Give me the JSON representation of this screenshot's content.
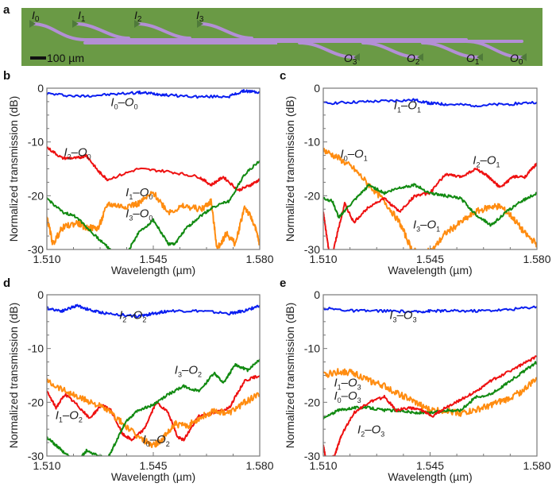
{
  "panel_letters": {
    "a": "a",
    "b": "b",
    "c": "c",
    "d": "d",
    "e": "e"
  },
  "photo": {
    "scale_bar_label": "100 µm",
    "inputs": [
      {
        "base": "I",
        "sub": "0"
      },
      {
        "base": "I",
        "sub": "1"
      },
      {
        "base": "I",
        "sub": "2"
      },
      {
        "base": "I",
        "sub": "3"
      }
    ],
    "outputs": [
      {
        "base": "O",
        "sub": "3"
      },
      {
        "base": "O",
        "sub": "2"
      },
      {
        "base": "O",
        "sub": "1"
      },
      {
        "base": "O",
        "sub": "0"
      }
    ],
    "colors": {
      "background": "#6a9a45",
      "waveguide": "#b38fd6",
      "coupler": "#4f7a3a"
    }
  },
  "series_colors": {
    "blue": "#0a1ef0",
    "red": "#ee1010",
    "orange": "#ff8c10",
    "green": "#118a11"
  },
  "chart_data": [
    {
      "panel": "b",
      "type": "line",
      "xlabel": "Wavelength (µm)",
      "ylabel": "Normalized transmission (dB)",
      "xlim": [
        1.51,
        1.58
      ],
      "ylim": [
        -30,
        0
      ],
      "xticks": [
        "1.510",
        "1.545",
        "1.580"
      ],
      "yticks": [
        "0",
        "-10",
        "-20",
        "-30"
      ],
      "series": [
        {
          "name": "I0–O0",
          "label": {
            "a": "I",
            "as": "0",
            "b": "O",
            "bs": "0"
          },
          "color": "blue",
          "x": [
            1.51,
            1.52,
            1.53,
            1.54,
            1.545,
            1.55,
            1.56,
            1.57,
            1.575,
            1.58
          ],
          "y": [
            -1.0,
            -1.5,
            -1.2,
            -0.8,
            -1.0,
            -1.3,
            -1.6,
            -1.5,
            -0.5,
            -0.8
          ]
        },
        {
          "name": "I2–O0",
          "label": {
            "a": "I",
            "as": "2",
            "b": "O",
            "bs": "0"
          },
          "color": "red",
          "x": [
            1.51,
            1.515,
            1.52,
            1.523,
            1.527,
            1.53,
            1.54,
            1.55,
            1.56,
            1.564,
            1.568,
            1.573,
            1.577,
            1.58
          ],
          "y": [
            -11.0,
            -13.0,
            -13.0,
            -12.5,
            -15.5,
            -17.0,
            -15.0,
            -15.5,
            -16.5,
            -18.0,
            -16.5,
            -19.0,
            -18.0,
            -17.0
          ]
        },
        {
          "name": "I1–O0",
          "label": {
            "a": "I",
            "as": "1",
            "b": "O",
            "bs": "0"
          },
          "color": "orange",
          "x": [
            1.51,
            1.512,
            1.515,
            1.52,
            1.523,
            1.527,
            1.53,
            1.535,
            1.54,
            1.545,
            1.55,
            1.555,
            1.561,
            1.564,
            1.566,
            1.569,
            1.572,
            1.575,
            1.578,
            1.58
          ],
          "y": [
            -24.0,
            -29.0,
            -26.0,
            -25.0,
            -26.0,
            -26.0,
            -21.5,
            -22.0,
            -21.5,
            -19.5,
            -23.0,
            -22.0,
            -22.5,
            -21.0,
            -30.0,
            -27.0,
            -29.0,
            -22.0,
            -25.0,
            -29.0
          ]
        },
        {
          "name": "I3–O0",
          "label": {
            "a": "I",
            "as": "3",
            "b": "O",
            "bs": "0"
          },
          "color": "green",
          "x": [
            1.51,
            1.515,
            1.52,
            1.525,
            1.53,
            1.532,
            1.536,
            1.54,
            1.545,
            1.55,
            1.552,
            1.556,
            1.56,
            1.565,
            1.57,
            1.575,
            1.58
          ],
          "y": [
            -20.5,
            -23.0,
            -24.0,
            -27.0,
            -29.5,
            -31.0,
            -31.0,
            -27.0,
            -24.5,
            -29.0,
            -29.0,
            -26.0,
            -24.0,
            -22.0,
            -21.0,
            -16.0,
            -13.5
          ]
        }
      ]
    },
    {
      "panel": "c",
      "type": "line",
      "xlabel": "Wavelength (µm)",
      "ylabel": "Normalized transmission (dB)",
      "xlim": [
        1.51,
        1.58
      ],
      "ylim": [
        -30,
        0
      ],
      "xticks": [
        "1.510",
        "1.545",
        "1.580"
      ],
      "yticks": [
        "0",
        "-10",
        "-20",
        "-30"
      ],
      "series": [
        {
          "name": "I1–O1",
          "label": {
            "a": "I",
            "as": "1",
            "b": "O",
            "bs": "1"
          },
          "color": "blue",
          "x": [
            1.51,
            1.52,
            1.53,
            1.54,
            1.545,
            1.55,
            1.56,
            1.57,
            1.58
          ],
          "y": [
            -2.8,
            -2.6,
            -2.4,
            -2.2,
            -2.8,
            -3.0,
            -3.2,
            -3.0,
            -2.6
          ]
        },
        {
          "name": "I0–O1",
          "label": {
            "a": "I",
            "as": "0",
            "b": "O",
            "bs": "1"
          },
          "color": "orange",
          "x": [
            1.51,
            1.515,
            1.52,
            1.525,
            1.53,
            1.535,
            1.539,
            1.542,
            1.546,
            1.55,
            1.555,
            1.56,
            1.565,
            1.568,
            1.572,
            1.576,
            1.58
          ],
          "y": [
            -11.5,
            -13.0,
            -15.0,
            -18.0,
            -21.0,
            -25.0,
            -30.0,
            -31.0,
            -30.0,
            -27.0,
            -25.0,
            -23.0,
            -22.0,
            -22.0,
            -24.0,
            -27.0,
            -29.0
          ]
        },
        {
          "name": "I2–O1",
          "label": {
            "a": "I",
            "as": "2",
            "b": "O",
            "bs": "1"
          },
          "color": "red",
          "x": [
            1.51,
            1.511,
            1.512,
            1.513,
            1.515,
            1.517,
            1.52,
            1.525,
            1.53,
            1.535,
            1.54,
            1.545,
            1.55,
            1.555,
            1.56,
            1.563,
            1.565,
            1.568,
            1.572,
            1.576,
            1.58
          ],
          "y": [
            -23.0,
            -27.0,
            -31.0,
            -31.0,
            -26.0,
            -21.5,
            -25.0,
            -22.0,
            -20.5,
            -23.0,
            -20.0,
            -19.5,
            -16.0,
            -16.5,
            -15.0,
            -16.0,
            -17.0,
            -18.5,
            -16.5,
            -16.5,
            -14.0
          ]
        },
        {
          "name": "I3–O1",
          "label": {
            "a": "I",
            "as": "3",
            "b": "O",
            "bs": "1"
          },
          "color": "green",
          "x": [
            1.51,
            1.513,
            1.515,
            1.52,
            1.525,
            1.53,
            1.535,
            1.54,
            1.545,
            1.55,
            1.555,
            1.56,
            1.565,
            1.57,
            1.575,
            1.58
          ],
          "y": [
            -20.5,
            -21.0,
            -24.0,
            -21.0,
            -18.0,
            -19.5,
            -18.5,
            -18.0,
            -19.5,
            -20.0,
            -20.5,
            -23.5,
            -25.5,
            -23.0,
            -21.0,
            -19.5
          ]
        }
      ]
    },
    {
      "panel": "d",
      "type": "line",
      "xlabel": "Wavelength (µm)",
      "ylabel": "Normalized transmission (dB)",
      "xlim": [
        1.51,
        1.58
      ],
      "ylim": [
        -30,
        0
      ],
      "xticks": [
        "1.510",
        "1.545",
        "1.580"
      ],
      "yticks": [
        "0",
        "-10",
        "-20",
        "-30"
      ],
      "series": [
        {
          "name": "I2–O2",
          "label": {
            "a": "I",
            "as": "2",
            "b": "O",
            "bs": "2"
          },
          "color": "blue",
          "x": [
            1.51,
            1.515,
            1.52,
            1.525,
            1.53,
            1.54,
            1.545,
            1.55,
            1.56,
            1.57,
            1.575,
            1.58
          ],
          "y": [
            -2.5,
            -3.0,
            -2.0,
            -3.0,
            -3.5,
            -4.0,
            -3.5,
            -3.0,
            -3.0,
            -3.5,
            -3.0,
            -2.0
          ]
        },
        {
          "name": "I1–O2",
          "label": {
            "a": "I",
            "as": "1",
            "b": "O",
            "bs": "2"
          },
          "color": "red",
          "x": [
            1.51,
            1.513,
            1.516,
            1.52,
            1.524,
            1.528,
            1.531,
            1.535,
            1.538,
            1.542,
            1.546,
            1.55,
            1.553,
            1.555,
            1.56,
            1.565,
            1.57,
            1.575,
            1.58
          ],
          "y": [
            -18.0,
            -21.0,
            -18.5,
            -20.5,
            -23.0,
            -20.5,
            -21.5,
            -26.0,
            -27.0,
            -25.0,
            -20.0,
            -22.0,
            -26.5,
            -27.0,
            -22.5,
            -22.0,
            -21.0,
            -16.0,
            -15.0
          ]
        },
        {
          "name": "I0–O2",
          "label": {
            "a": "I",
            "as": "0",
            "b": "O",
            "bs": "2"
          },
          "color": "orange",
          "x": [
            1.51,
            1.515,
            1.52,
            1.525,
            1.53,
            1.535,
            1.54,
            1.545,
            1.548,
            1.552,
            1.556,
            1.56,
            1.565,
            1.57,
            1.575,
            1.58
          ],
          "y": [
            -16.0,
            -17.5,
            -19.0,
            -20.0,
            -21.5,
            -24.0,
            -26.5,
            -28.0,
            -27.0,
            -24.0,
            -24.5,
            -23.0,
            -21.5,
            -22.0,
            -20.0,
            -18.5
          ]
        },
        {
          "name": "I3–O2",
          "label": {
            "a": "I",
            "as": "3",
            "b": "O",
            "bs": "2"
          },
          "color": "green",
          "x": [
            1.51,
            1.513,
            1.516,
            1.52,
            1.523,
            1.527,
            1.53,
            1.533,
            1.536,
            1.54,
            1.545,
            1.55,
            1.555,
            1.56,
            1.565,
            1.568,
            1.572,
            1.576,
            1.58
          ],
          "y": [
            -26.5,
            -28.0,
            -29.5,
            -31.0,
            -29.0,
            -30.0,
            -30.5,
            -27.0,
            -23.5,
            -21.5,
            -20.5,
            -18.5,
            -17.0,
            -18.0,
            -14.5,
            -16.5,
            -13.0,
            -14.0,
            -12.0
          ]
        }
      ]
    },
    {
      "panel": "e",
      "type": "line",
      "xlabel": "Wavelength (µm)",
      "ylabel": "Normalized transmission (dB)",
      "xlim": [
        1.51,
        1.58
      ],
      "ylim": [
        -30,
        0
      ],
      "xticks": [
        "1.510",
        "1.545",
        "1.580"
      ],
      "yticks": [
        "0",
        "-10",
        "-20",
        "-30"
      ],
      "series": [
        {
          "name": "I3–O3",
          "label": {
            "a": "I",
            "as": "3",
            "b": "O",
            "bs": "3"
          },
          "color": "blue",
          "x": [
            1.51,
            1.52,
            1.53,
            1.54,
            1.545,
            1.55,
            1.56,
            1.57,
            1.58
          ],
          "y": [
            -2.5,
            -3.0,
            -3.0,
            -3.2,
            -3.0,
            -3.0,
            -3.0,
            -2.8,
            -2.2
          ]
        },
        {
          "name": "I1–O3",
          "label": {
            "a": "I",
            "as": "1",
            "b": "O",
            "bs": "3"
          },
          "color": "orange",
          "x": [
            1.51,
            1.515,
            1.52,
            1.525,
            1.53,
            1.535,
            1.54,
            1.545,
            1.55,
            1.555,
            1.56,
            1.565,
            1.57,
            1.575,
            1.58
          ],
          "y": [
            -15.0,
            -14.3,
            -14.5,
            -16.0,
            -17.0,
            -18.5,
            -20.0,
            -21.5,
            -21.5,
            -22.0,
            -21.5,
            -20.5,
            -19.5,
            -18.0,
            -15.5
          ]
        },
        {
          "name": "I0–O3",
          "label": {
            "a": "I",
            "as": "0",
            "b": "O",
            "bs": "3"
          },
          "color": "green",
          "x": [
            1.51,
            1.515,
            1.52,
            1.525,
            1.53,
            1.535,
            1.54,
            1.545,
            1.55,
            1.555,
            1.56,
            1.565,
            1.57,
            1.575,
            1.58
          ],
          "y": [
            -23.0,
            -21.5,
            -21.0,
            -21.0,
            -21.5,
            -21.5,
            -22.0,
            -22.0,
            -21.5,
            -21.5,
            -19.0,
            -18.5,
            -16.5,
            -14.5,
            -12.5
          ]
        },
        {
          "name": "I2–O3",
          "label": {
            "a": "I",
            "as": "2",
            "b": "O",
            "bs": "3"
          },
          "color": "red",
          "x": [
            1.51,
            1.511,
            1.512,
            1.514,
            1.516,
            1.52,
            1.525,
            1.53,
            1.534,
            1.538,
            1.542,
            1.546,
            1.55,
            1.555,
            1.56,
            1.565,
            1.57,
            1.575,
            1.58
          ],
          "y": [
            -28.0,
            -31.0,
            -31.0,
            -29.5,
            -26.0,
            -22.0,
            -20.0,
            -19.0,
            -21.5,
            -21.0,
            -21.5,
            -22.5,
            -21.0,
            -19.5,
            -18.0,
            -16.0,
            -14.5,
            -13.0,
            -11.5
          ]
        }
      ]
    }
  ]
}
